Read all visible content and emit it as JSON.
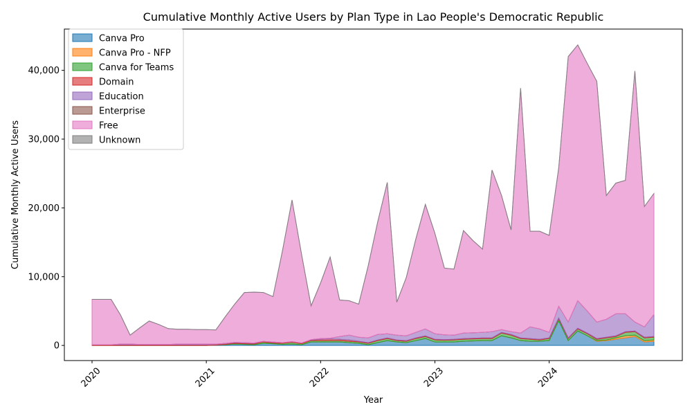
{
  "chart_data": {
    "type": "area",
    "stacked": true,
    "title": "Cumulative Monthly Active Users by Plan Type in Lao People's Democratic Republic",
    "xlabel": "Year",
    "ylabel": "Cumulative Monthly Active Users",
    "x_ticks": [
      "2020",
      "2021",
      "2022",
      "2023",
      "2024"
    ],
    "y_ticks": [
      "0",
      "10,000",
      "20,000",
      "30,000",
      "40,000"
    ],
    "ylim": [
      -2200,
      46000
    ],
    "grid": false,
    "legend_position": "top-left",
    "x": [
      "2020-01",
      "2020-02",
      "2020-03",
      "2020-04",
      "2020-05",
      "2020-06",
      "2020-07",
      "2020-08",
      "2020-09",
      "2020-10",
      "2020-11",
      "2020-12",
      "2021-01",
      "2021-02",
      "2021-03",
      "2021-04",
      "2021-05",
      "2021-06",
      "2021-07",
      "2021-08",
      "2021-09",
      "2021-10",
      "2021-11",
      "2021-12",
      "2022-01",
      "2022-02",
      "2022-03",
      "2022-04",
      "2022-05",
      "2022-06",
      "2022-07",
      "2022-08",
      "2022-09",
      "2022-10",
      "2022-11",
      "2022-12",
      "2023-01",
      "2023-02",
      "2023-03",
      "2023-04",
      "2023-05",
      "2023-06",
      "2023-07",
      "2023-08",
      "2023-09",
      "2023-10",
      "2023-11",
      "2023-12",
      "2024-01",
      "2024-02",
      "2024-03",
      "2024-04",
      "2024-05",
      "2024-06",
      "2024-07",
      "2024-08",
      "2024-09",
      "2024-10",
      "2024-11",
      "2024-12"
    ],
    "series": [
      {
        "name": "Canva Pro",
        "color": "#1f77b4",
        "fill": "#6ea8d3",
        "values": [
          0,
          0,
          0,
          0,
          0,
          0,
          0,
          0,
          0,
          0,
          0,
          0,
          0,
          50,
          100,
          200,
          150,
          100,
          300,
          250,
          150,
          200,
          100,
          500,
          500,
          500,
          500,
          400,
          300,
          100,
          400,
          700,
          500,
          400,
          700,
          1000,
          500,
          500,
          500,
          600,
          650,
          700,
          700,
          1400,
          1100,
          700,
          600,
          600,
          700,
          3600,
          700,
          2100,
          1400,
          600,
          700,
          900,
          1100,
          1300,
          500,
          600
        ]
      },
      {
        "name": "Canva Pro - NFP",
        "color": "#ff7f0e",
        "fill": "#ffad66",
        "values": [
          0,
          0,
          0,
          0,
          0,
          0,
          0,
          0,
          0,
          0,
          0,
          0,
          0,
          0,
          0,
          0,
          0,
          0,
          0,
          0,
          0,
          0,
          0,
          0,
          0,
          0,
          0,
          0,
          0,
          0,
          0,
          0,
          0,
          0,
          0,
          0,
          0,
          0,
          0,
          0,
          0,
          0,
          0,
          0,
          0,
          0,
          0,
          0,
          0,
          0,
          0,
          0,
          0,
          100,
          100,
          200,
          300,
          200,
          200,
          200
        ]
      },
      {
        "name": "Canva for Teams",
        "color": "#2ca02c",
        "fill": "#80c880",
        "values": [
          0,
          0,
          0,
          0,
          0,
          0,
          0,
          0,
          0,
          0,
          0,
          0,
          0,
          0,
          50,
          100,
          100,
          100,
          200,
          100,
          150,
          250,
          150,
          200,
          200,
          200,
          200,
          200,
          200,
          200,
          300,
          300,
          200,
          200,
          300,
          300,
          300,
          250,
          300,
          300,
          300,
          300,
          300,
          400,
          400,
          300,
          300,
          200,
          300,
          300,
          300,
          300,
          300,
          200,
          300,
          200,
          500,
          500,
          400,
          400
        ]
      },
      {
        "name": "Domain",
        "color": "#d62728",
        "fill": "#e87d7e",
        "values": [
          100,
          100,
          100,
          100,
          100,
          100,
          100,
          100,
          100,
          100,
          100,
          100,
          100,
          100,
          100,
          100,
          100,
          100,
          100,
          100,
          100,
          100,
          100,
          100,
          200,
          250,
          200,
          200,
          100,
          100,
          100,
          100,
          100,
          100,
          100,
          100,
          100,
          100,
          100,
          100,
          100,
          100,
          100,
          100,
          100,
          100,
          100,
          100,
          100,
          100,
          100,
          100,
          100,
          100,
          100,
          100,
          100,
          100,
          100,
          100
        ]
      },
      {
        "name": "Education",
        "color": "#9467bd",
        "fill": "#bea4d8",
        "values": [
          0,
          0,
          0,
          100,
          100,
          50,
          50,
          50,
          50,
          100,
          100,
          100,
          100,
          50,
          50,
          50,
          50,
          50,
          0,
          50,
          0,
          0,
          0,
          50,
          100,
          100,
          400,
          700,
          600,
          700,
          800,
          600,
          700,
          700,
          800,
          1000,
          800,
          700,
          600,
          800,
          800,
          800,
          900,
          400,
          400,
          700,
          1700,
          1500,
          800,
          1700,
          2300,
          4000,
          3200,
          2400,
          2600,
          3200,
          2600,
          1300,
          1500,
          3200
        ]
      },
      {
        "name": "Enterprise",
        "color": "#8c564b",
        "fill": "#c1a09a",
        "values": [
          0,
          0,
          0,
          0,
          0,
          0,
          0,
          0,
          0,
          0,
          0,
          0,
          0,
          0,
          0,
          0,
          0,
          0,
          0,
          0,
          0,
          0,
          0,
          0,
          0,
          0,
          0,
          0,
          0,
          0,
          0,
          0,
          0,
          0,
          0,
          0,
          0,
          0,
          0,
          0,
          0,
          0,
          0,
          0,
          0,
          0,
          0,
          0,
          0,
          0,
          0,
          0,
          0,
          0,
          0,
          0,
          0,
          0,
          0,
          0
        ]
      },
      {
        "name": "Free",
        "color": "#e377c2",
        "fill": "#efaadb",
        "values": [
          6600,
          6600,
          6600,
          4200,
          1300,
          2400,
          3400,
          2900,
          2300,
          2150,
          2150,
          2100,
          2100,
          2050,
          3900,
          5600,
          7300,
          7400,
          7100,
          6600,
          13400,
          20600,
          12900,
          4900,
          8100,
          11800,
          5300,
          5000,
          4800,
          10500,
          16400,
          22000,
          4800,
          8500,
          13600,
          18100,
          14600,
          9700,
          9600,
          14900,
          13400,
          12100,
          23500,
          19500,
          14800,
          35600,
          13900,
          14200,
          14100,
          20100,
          38600,
          37200,
          36000,
          35000,
          18000,
          19000,
          19400,
          36500,
          17500,
          17600
        ]
      },
      {
        "name": "Unknown",
        "color": "#7f7f7f",
        "fill": "#b2b2b2",
        "values": [
          0,
          0,
          0,
          0,
          0,
          0,
          0,
          0,
          0,
          0,
          0,
          0,
          0,
          0,
          0,
          0,
          0,
          0,
          0,
          0,
          0,
          0,
          0,
          0,
          0,
          0,
          0,
          0,
          0,
          0,
          0,
          0,
          0,
          0,
          0,
          0,
          0,
          0,
          0,
          0,
          0,
          0,
          0,
          0,
          0,
          0,
          0,
          0,
          0,
          0,
          0,
          0,
          0,
          0,
          0,
          0,
          0,
          0,
          0,
          0
        ]
      }
    ]
  }
}
